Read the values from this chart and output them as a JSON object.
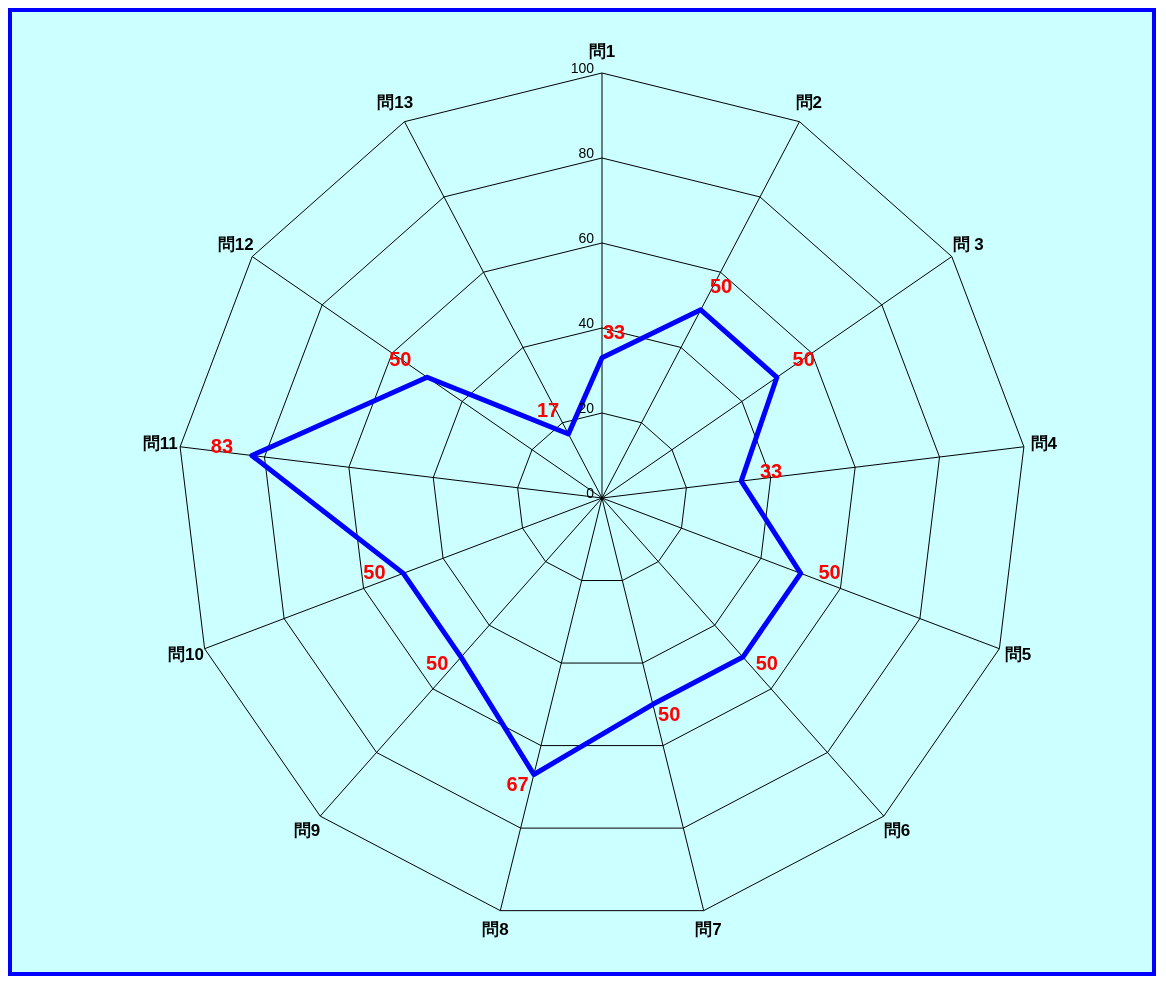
{
  "chart_data": {
    "type": "radar",
    "categories": [
      "問1",
      "問2",
      "問 3",
      "問4",
      "問5",
      "問6",
      "問7",
      "問8",
      "問9",
      "問10",
      "問11",
      "問12",
      "問13"
    ],
    "series": [
      {
        "color": "#0000ff",
        "values": [
          33,
          50,
          50,
          33,
          50,
          50,
          50,
          67,
          50,
          50,
          83,
          50,
          17
        ]
      }
    ],
    "ylim": [
      0,
      100
    ],
    "yticks": [
      0,
      20,
      40,
      60,
      80,
      100
    ],
    "data_labels": true,
    "grid": true,
    "marker": "none"
  }
}
